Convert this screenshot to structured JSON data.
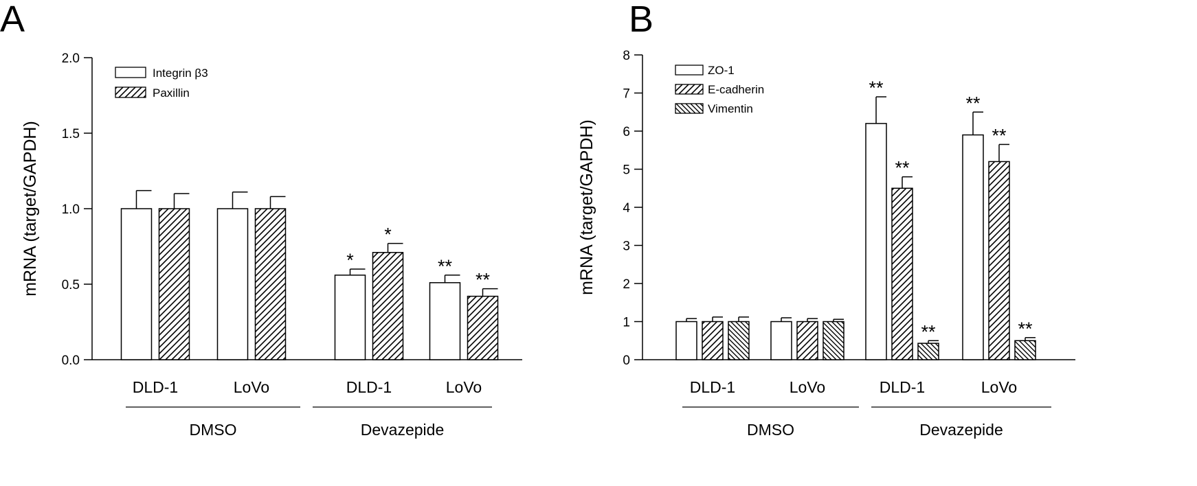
{
  "chart_data": [
    {
      "panel": "A",
      "type": "bar",
      "ylabel": "mRNA (target/GAPDH)",
      "ylim": [
        0,
        2.0
      ],
      "yticks": [
        "0.0",
        "0.5",
        "1.0",
        "1.5",
        "2.0"
      ],
      "ytick_values": [
        0,
        0.5,
        1.0,
        1.5,
        2.0
      ],
      "categories": [
        "DLD-1",
        "LoVo",
        "DLD-1",
        "LoVo"
      ],
      "groups": [
        {
          "label": "DMSO",
          "categories": [
            0,
            1
          ]
        },
        {
          "label": "Devazepide",
          "categories": [
            2,
            3
          ]
        }
      ],
      "legend_position": "top-left",
      "series": [
        {
          "name": "Integrin β3",
          "pattern": "open",
          "values": [
            1.0,
            1.0,
            0.56,
            0.51
          ],
          "errors": [
            0.12,
            0.11,
            0.04,
            0.05
          ],
          "significance": [
            "",
            "",
            "*",
            "**"
          ]
        },
        {
          "name": "Paxillin",
          "pattern": "hatch-diag",
          "values": [
            1.0,
            1.0,
            0.71,
            0.42
          ],
          "errors": [
            0.1,
            0.08,
            0.06,
            0.05
          ],
          "significance": [
            "",
            "",
            "*",
            "**"
          ]
        }
      ]
    },
    {
      "panel": "B",
      "type": "bar",
      "ylabel": "mRNA (target/GAPDH)",
      "ylim": [
        0,
        8
      ],
      "yticks": [
        "0",
        "1",
        "2",
        "3",
        "4",
        "5",
        "6",
        "7",
        "8"
      ],
      "ytick_values": [
        0,
        1,
        2,
        3,
        4,
        5,
        6,
        7,
        8
      ],
      "categories": [
        "DLD-1",
        "LoVo",
        "DLD-1",
        "LoVo"
      ],
      "groups": [
        {
          "label": "DMSO",
          "categories": [
            0,
            1
          ]
        },
        {
          "label": "Devazepide",
          "categories": [
            2,
            3
          ]
        }
      ],
      "legend_position": "top-left",
      "series": [
        {
          "name": "ZO-1",
          "pattern": "open",
          "values": [
            1.0,
            1.0,
            6.2,
            5.9
          ],
          "errors": [
            0.08,
            0.1,
            0.7,
            0.6
          ],
          "significance": [
            "",
            "",
            "**",
            "**"
          ]
        },
        {
          "name": "E-cadherin",
          "pattern": "hatch-diag",
          "values": [
            1.0,
            1.0,
            4.5,
            5.2
          ],
          "errors": [
            0.12,
            0.08,
            0.3,
            0.45
          ],
          "significance": [
            "",
            "",
            "**",
            "**"
          ]
        },
        {
          "name": "Vimentin",
          "pattern": "hatch-back",
          "values": [
            1.0,
            1.0,
            0.43,
            0.5
          ],
          "errors": [
            0.12,
            0.06,
            0.07,
            0.08
          ],
          "significance": [
            "",
            "",
            "**",
            "**"
          ]
        }
      ]
    }
  ]
}
